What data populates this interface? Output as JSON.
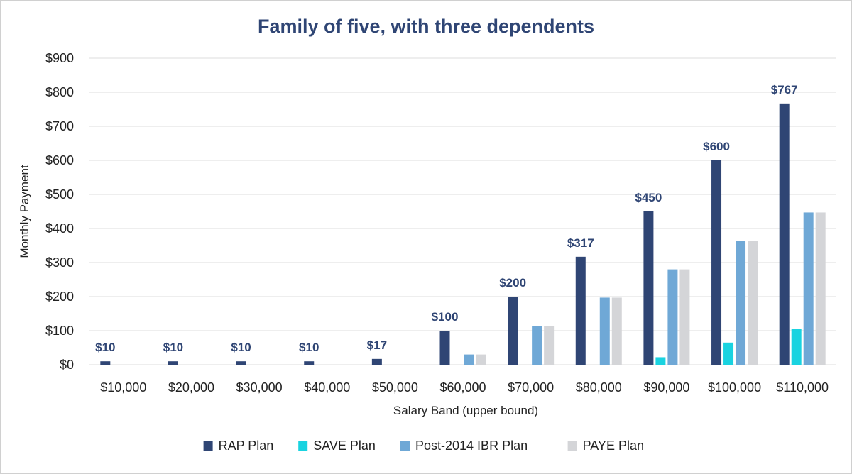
{
  "chart_data": {
    "type": "bar",
    "title": "Family of five, with three dependents",
    "xlabel": "Salary Band (upper bound)",
    "ylabel": "Monthly Payment",
    "ylim": [
      0,
      900
    ],
    "yticks": [
      "$0",
      "$100",
      "$200",
      "$300",
      "$400",
      "$500",
      "$600",
      "$700",
      "$800",
      "$900"
    ],
    "ytick_values": [
      0,
      100,
      200,
      300,
      400,
      500,
      600,
      700,
      800,
      900
    ],
    "categories": [
      "$10,000",
      "$20,000",
      "$30,000",
      "$40,000",
      "$50,000",
      "$60,000",
      "$70,000",
      "$80,000",
      "$90,000",
      "$100,000",
      "$110,000"
    ],
    "series": [
      {
        "name": "RAP Plan",
        "color": "#2f4574",
        "values": [
          10,
          10,
          10,
          10,
          17,
          100,
          200,
          317,
          450,
          600,
          767
        ]
      },
      {
        "name": "SAVE Plan",
        "color": "#19d3e0",
        "values": [
          0,
          0,
          0,
          0,
          0,
          0,
          0,
          0,
          22,
          65,
          106
        ]
      },
      {
        "name": "Post-2014 IBR Plan",
        "color": "#6fa8d6",
        "values": [
          0,
          0,
          0,
          0,
          0,
          30,
          114,
          197,
          280,
          363,
          447
        ]
      },
      {
        "name": "PAYE Plan",
        "color": "#d4d5d8",
        "values": [
          0,
          0,
          0,
          0,
          0,
          30,
          114,
          197,
          280,
          363,
          447
        ]
      }
    ],
    "data_labels": [
      "$10",
      "$10",
      "$10",
      "$10",
      "$17",
      "$100",
      "$200",
      "$317",
      "$450",
      "$600",
      "$767"
    ],
    "grid": true,
    "legend": "bottom"
  }
}
